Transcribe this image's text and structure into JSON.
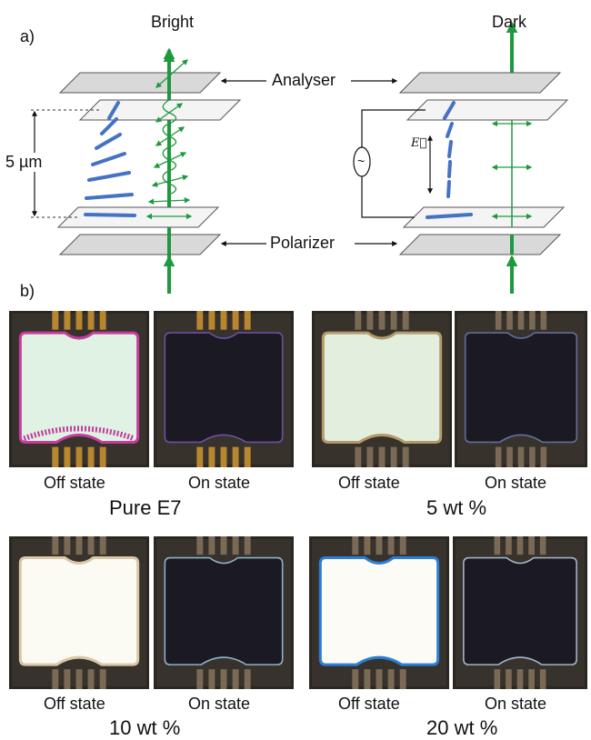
{
  "panel_a": {
    "label": "a)",
    "left": {
      "top_label": "Bright",
      "thickness": "5 µm"
    },
    "right": {
      "top_label": "Dark",
      "field_symbol": "E⃗",
      "source_symbol": "~"
    },
    "analyser": "Analyser",
    "polarizer": "Polarizer"
  },
  "panel_b": {
    "label": "b)",
    "samples": [
      {
        "name": "Pure E7",
        "off": "Off state",
        "on": "On state"
      },
      {
        "name": "5 wt %",
        "off": "Off state",
        "on": "On state"
      },
      {
        "name": "10 wt %",
        "off": "Off state",
        "on": "On state"
      },
      {
        "name": "20 wt %",
        "off": "Off state",
        "on": "On state"
      }
    ]
  },
  "colors": {
    "director": "#4472c4",
    "light": "#1e9a3c",
    "plate": "#d9d9d9",
    "plate_light": "#f4f4f4",
    "cell_frame": "#2a2622",
    "contact_gold": "#b8862e"
  }
}
